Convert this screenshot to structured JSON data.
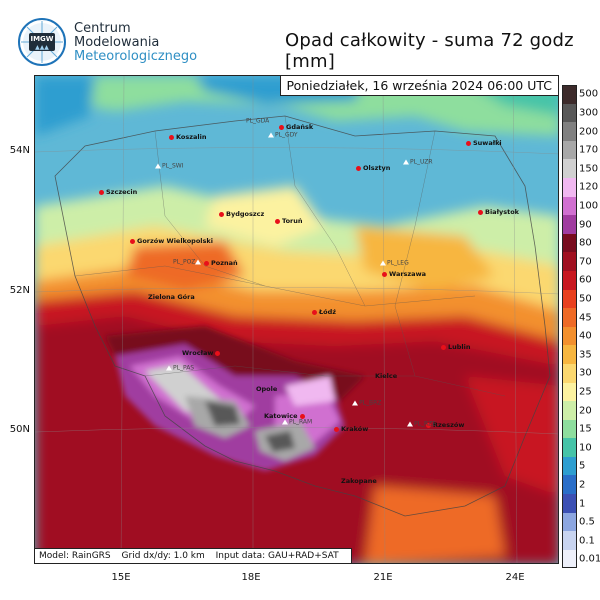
{
  "brand": {
    "logo_text": "IMGW",
    "line1": "Centrum",
    "line2": "Modelowania",
    "line3": "Meteorologicznego"
  },
  "title": "Opad całkowity - suma 72 godz [mm]",
  "date": "Poniedziałek, 16 września 2024 06:00 UTC",
  "model_info": {
    "model": "Model: RainGRS",
    "grid": "Grid dx/dy: 1.0 km",
    "input": "Input data: GAU+RAD+SAT"
  },
  "axes": {
    "lat_labels": [
      "54N",
      "52N",
      "50N"
    ],
    "lon_labels": [
      "15E",
      "18E",
      "21E",
      "24E"
    ]
  },
  "cities": [
    "Koszalin",
    "Gdańsk",
    "Suwałki",
    "Olsztyn",
    "Szczecin",
    "Bydgoszcz",
    "Toruń",
    "Białystok",
    "Gorzów Wielkopolski",
    "Poznań",
    "Warszawa",
    "Zielona Góra",
    "Łódź",
    "Lublin",
    "Wrocław",
    "Opole",
    "Kielce",
    "Katowice",
    "Kraków",
    "Rzeszów",
    "Zakopane"
  ],
  "stations": [
    "PL_GDA",
    "PL_GDY",
    "PL_SWI",
    "PL_UZR",
    "PL_POZ",
    "PL_LEG",
    "PL_PAS",
    "PL_RAM",
    "PL_BRZ",
    "PL_RZE"
  ],
  "legend": {
    "labels": [
      "500",
      "300",
      "200",
      "170",
      "150",
      "120",
      "100",
      "90",
      "80",
      "70",
      "60",
      "50",
      "45",
      "40",
      "35",
      "30",
      "25",
      "20",
      "15",
      "10",
      "5",
      "2",
      "1",
      "0.5",
      "0.1",
      "0.01"
    ],
    "colors": [
      "#3d2b2b",
      "#585858",
      "#808080",
      "#a8a8a8",
      "#d0d0d0",
      "#f0b8f0",
      "#d070d0",
      "#a03ca0",
      "#780c1e",
      "#a01020",
      "#c81820",
      "#e8401e",
      "#ee6a26",
      "#f3902e",
      "#f7b640",
      "#fbd870",
      "#fcf2a0",
      "#cdeea8",
      "#8ede9e",
      "#46c4a8",
      "#2e9ed0",
      "#2a6ec8",
      "#3c50b4",
      "#8ca6e0",
      "#c8d4f0",
      "#eef0fa"
    ]
  }
}
